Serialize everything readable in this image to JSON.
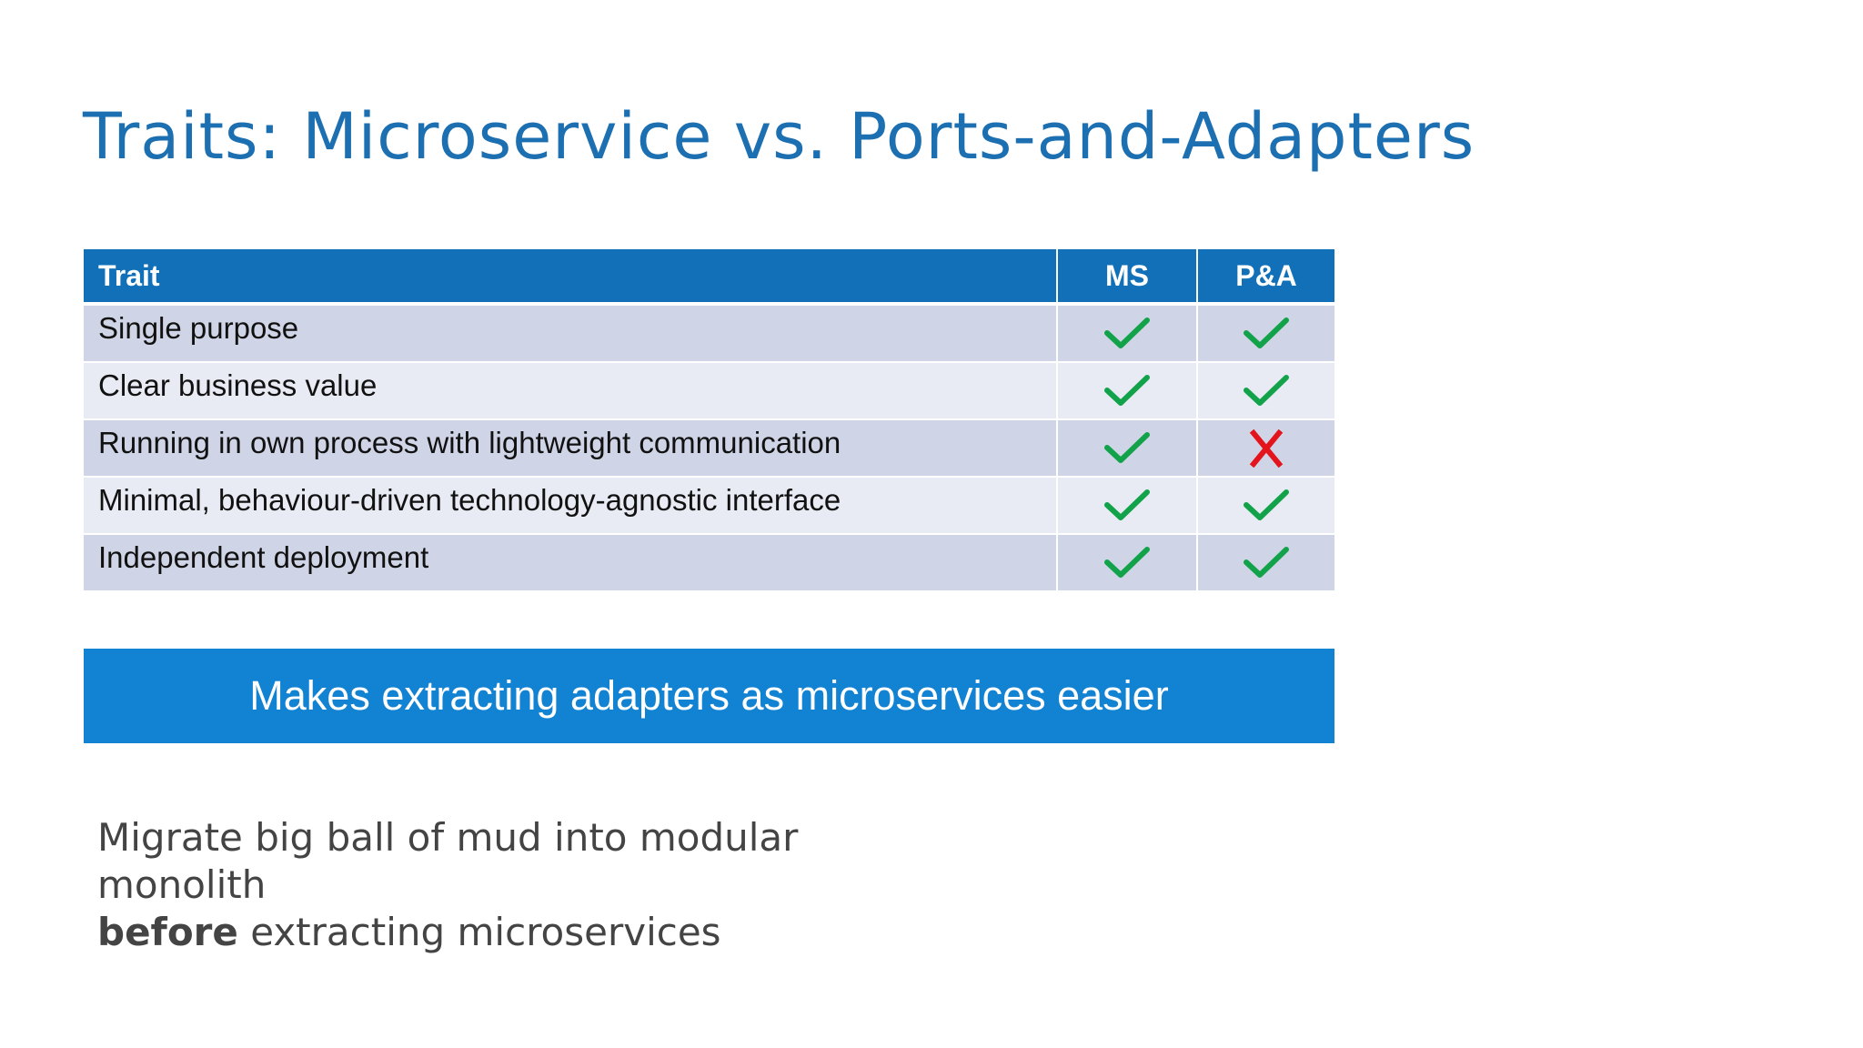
{
  "slide": {
    "title": "Traits: Microservice vs. Ports-and-Adapters",
    "table": {
      "headers": {
        "trait": "Trait",
        "ms": "MS",
        "pa": "P&A"
      },
      "rows": [
        {
          "trait": "Single purpose",
          "ms": "check-icon",
          "pa": "check-icon"
        },
        {
          "trait": "Clear business value",
          "ms": "check-icon",
          "pa": "check-icon"
        },
        {
          "trait": "Running in own process with lightweight communication",
          "ms": "check-icon",
          "pa": "cross-icon"
        },
        {
          "trait": "Minimal, behaviour-driven technology-agnostic interface",
          "ms": "check-icon",
          "pa": "check-icon"
        },
        {
          "trait": "Independent deployment",
          "ms": "check-icon",
          "pa": "check-icon"
        }
      ]
    },
    "banner": "Makes extracting adapters as microservices easier",
    "note": {
      "line1": "Migrate big ball of mud into modular",
      "line2": "monolith",
      "line3_bold": "before",
      "line3_rest": " extracting microservices"
    }
  },
  "colors": {
    "title": "#1c6fb1",
    "header_bg": "#1170b8",
    "row_odd": "#cfd5e6",
    "row_even": "#e8ebf4",
    "banner_bg": "#1282d3",
    "check": "#12a24a",
    "cross": "#e3141b"
  }
}
